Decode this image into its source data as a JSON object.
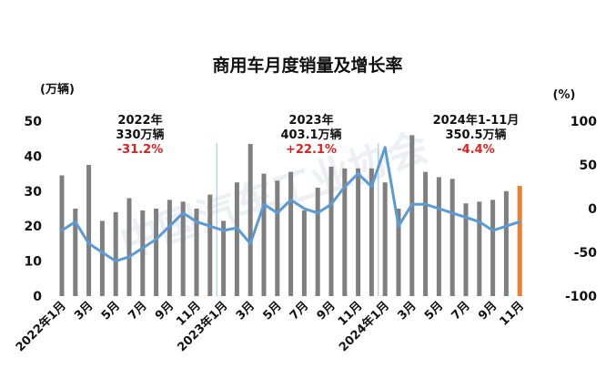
{
  "chart_data": {
    "type": "bar",
    "title": "商用车月度销量及增长率",
    "left_unit": "(万辆)",
    "right_unit": "(%)",
    "categories": [
      "2022年1月",
      "2月",
      "3月",
      "4月",
      "5月",
      "6月",
      "7月",
      "8月",
      "9月",
      "10月",
      "11月",
      "12月",
      "2023年1月",
      "2月",
      "3月",
      "4月",
      "5月",
      "6月",
      "7月",
      "8月",
      "9月",
      "10月",
      "11月",
      "12月",
      "2024年1月",
      "2月",
      "3月",
      "4月",
      "5月",
      "6月",
      "7月",
      "8月",
      "9月",
      "10月",
      "11月"
    ],
    "x_tick_labels": [
      "2022年1月",
      "",
      "3月",
      "",
      "5月",
      "",
      "7月",
      "",
      "9月",
      "",
      "11月",
      "",
      "2023年1月",
      "",
      "3月",
      "",
      "5月",
      "",
      "7月",
      "",
      "9月",
      "",
      "11月",
      "",
      "2024年1月",
      "",
      "3月",
      "",
      "5月",
      "",
      "7月",
      "",
      "9月",
      "",
      "11月"
    ],
    "series": [
      {
        "kind": "bar",
        "axis": "left",
        "values": [
          34.5,
          25.0,
          37.5,
          21.5,
          24.0,
          28.0,
          24.5,
          25.0,
          27.5,
          27.0,
          25.0,
          29.0,
          21.5,
          32.5,
          43.5,
          35.0,
          33.0,
          35.5,
          24.5,
          31.0,
          37.0,
          36.5,
          36.5,
          36.5,
          32.5,
          25.0,
          46.0,
          35.5,
          34.0,
          33.5,
          26.5,
          27.0,
          27.5,
          30.0,
          31.5
        ],
        "color": "#7f7f7f",
        "highlight_last_color": "#ed7d31"
      },
      {
        "kind": "line",
        "axis": "right",
        "values": [
          -25,
          -15,
          -40,
          -50,
          -60,
          -55,
          -45,
          -35,
          -20,
          -5,
          -15,
          -20,
          -25,
          -22,
          -40,
          5,
          -5,
          10,
          0,
          -5,
          5,
          25,
          40,
          25,
          70,
          -20,
          5,
          5,
          0,
          -5,
          -10,
          -15,
          -25,
          -20,
          -15
        ],
        "color": "#5b9bd5"
      }
    ],
    "ylim_left": [
      0,
      50
    ],
    "yticks_left": [
      0,
      10,
      20,
      30,
      40,
      50
    ],
    "ylim_right": [
      -100,
      100
    ],
    "yticks_right": [
      -100,
      -50,
      0,
      50,
      100
    ],
    "annotations": [
      {
        "lines": [
          "2022年",
          "330万辆"
        ],
        "emph": "-31.2%"
      },
      {
        "lines": [
          "2023年",
          "403.1万辆"
        ],
        "emph": "+22.1%"
      },
      {
        "lines": [
          "2024年1-11月",
          "350.5万辆"
        ],
        "emph": "-4.4%"
      }
    ],
    "grid": false,
    "legend": "none"
  },
  "watermark": "中国汽车工业协会"
}
